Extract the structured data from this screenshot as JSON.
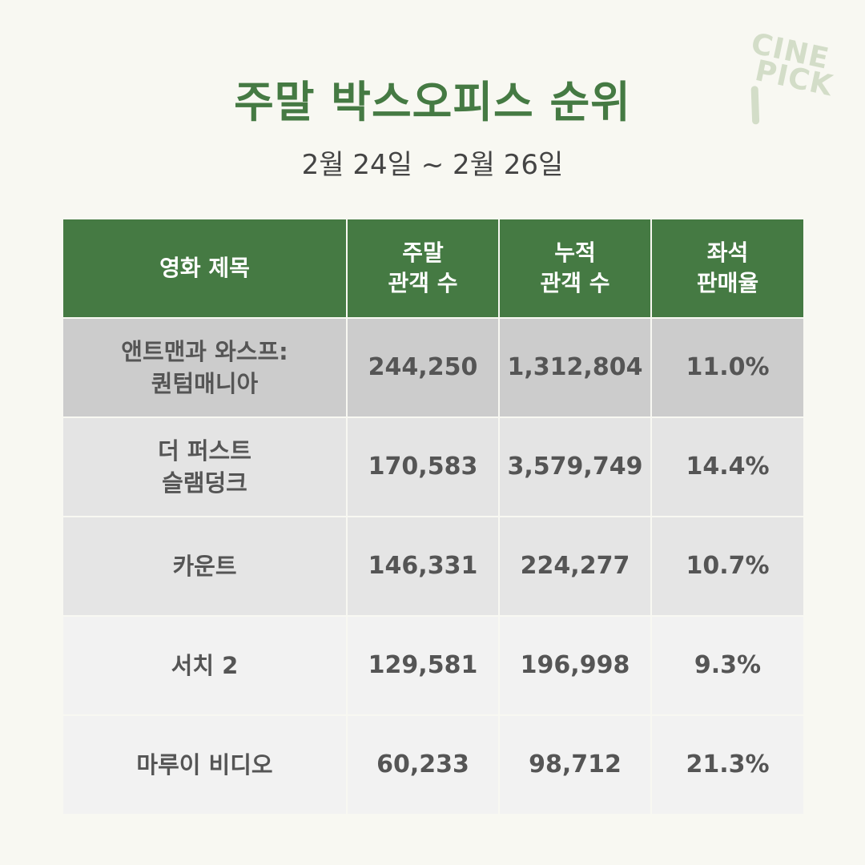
{
  "brand": {
    "line1": "CINE",
    "line2": "PICK"
  },
  "title": "주말 박스오피스 순위",
  "subtitle": "2월 24일 ~ 2월 26일",
  "table": {
    "headers": [
      {
        "line1": "영화 제목",
        "line2": ""
      },
      {
        "line1": "주말",
        "line2": "관객 수"
      },
      {
        "line1": "누적",
        "line2": "관객 수"
      },
      {
        "line1": "좌석",
        "line2": "판매율"
      }
    ],
    "rows": [
      {
        "title_line1": "앤트맨과 와스프:",
        "title_line2": "퀀텀매니아",
        "weekend": "244,250",
        "total": "1,312,804",
        "rate": "11.0%"
      },
      {
        "title_line1": "더 퍼스트",
        "title_line2": "슬램덩크",
        "weekend": "170,583",
        "total": "3,579,749",
        "rate": "14.4%"
      },
      {
        "title_line1": "카운트",
        "title_line2": "",
        "weekend": "146,331",
        "total": "224,277",
        "rate": "10.7%"
      },
      {
        "title_line1": "서치 2",
        "title_line2": "",
        "weekend": "129,581",
        "total": "196,998",
        "rate": "9.3%"
      },
      {
        "title_line1": "마루이 비디오",
        "title_line2": "",
        "weekend": "60,233",
        "total": "98,712",
        "rate": "21.3%"
      }
    ]
  },
  "colors": {
    "accent": "#457a43",
    "background": "#f8f8f2",
    "logo": "#d3ddc8"
  }
}
